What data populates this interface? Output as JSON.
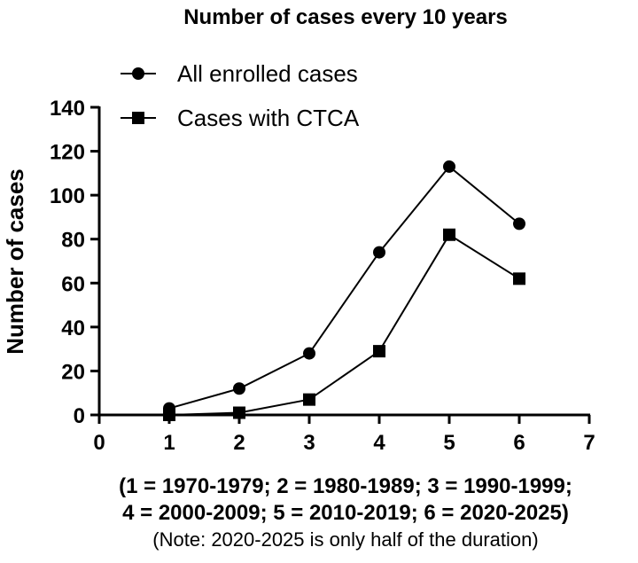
{
  "chart_data": {
    "type": "line",
    "title": "Number of cases every 10 years",
    "ylabel": "Number of cases",
    "xlabel_lines": [
      "(1 = 1970-1979; 2 = 1980-1989; 3 = 1990-1999;",
      "4 = 2000-2009; 5 = 2010-2019; 6 = 2020-2025)"
    ],
    "note": "(Note: 2020-2025 is only half of the duration)",
    "xlim": [
      0,
      7
    ],
    "ylim": [
      0,
      140
    ],
    "xticks": [
      0,
      1,
      2,
      3,
      4,
      5,
      6,
      7
    ],
    "yticks": [
      0,
      20,
      40,
      60,
      80,
      100,
      120,
      140
    ],
    "grid": false,
    "legend_position": "top-left",
    "series": [
      {
        "name": "All enrolled cases",
        "marker": "circle",
        "x": [
          1,
          2,
          3,
          4,
          5,
          6
        ],
        "values": [
          3,
          12,
          28,
          74,
          113,
          87
        ]
      },
      {
        "name": "Cases with CTCA",
        "marker": "square",
        "x": [
          1,
          2,
          3,
          4,
          5,
          6
        ],
        "values": [
          0,
          1,
          7,
          29,
          82,
          62
        ]
      }
    ]
  }
}
